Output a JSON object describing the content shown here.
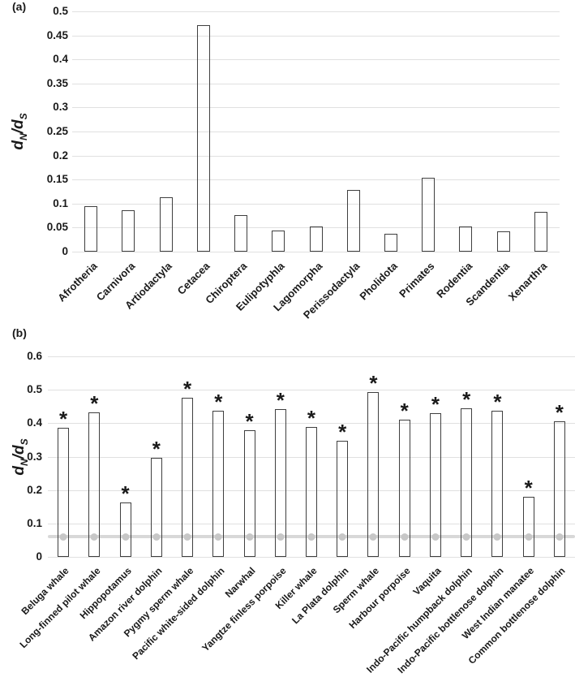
{
  "colors": {
    "background": "#ffffff",
    "text": "#1a1a1a",
    "gridline": "#e0e0e0",
    "bar_outline": "#3f3f3f",
    "reference_line": "#d8d8d8",
    "reference_dot": "#c7c7c7"
  },
  "chart_data": [
    {
      "type": "bar",
      "panel_label": "(a)",
      "y_axis_title": "dN/dS",
      "y_axis_title_parts": {
        "base1": "d",
        "sub1": "N",
        "base2": "/d",
        "sub2": "S"
      },
      "categories": [
        "Afrotheria",
        "Carnivora",
        "Artiodactyla",
        "Cetacea",
        "Chiroptera",
        "Eulipotyphla",
        "Lagomorpha",
        "Perissodactyla",
        "Pholidota",
        "Primates",
        "Rodentia",
        "Scandentia",
        "Xenarthra"
      ],
      "values": [
        0.095,
        0.086,
        0.113,
        0.472,
        0.076,
        0.044,
        0.052,
        0.128,
        0.037,
        0.153,
        0.052,
        0.042,
        0.082
      ],
      "ylim": [
        0,
        0.5
      ],
      "yticks": [
        0,
        0.05,
        0.1,
        0.15,
        0.2,
        0.25,
        0.3,
        0.35,
        0.4,
        0.45,
        0.5
      ],
      "ytick_labels": [
        "0",
        "0.05",
        "0.1",
        "0.15",
        "0.2",
        "0.25",
        "0.3",
        "0.35",
        "0.4",
        "0.45",
        "0.5"
      ],
      "grid": true,
      "legend": "none",
      "bar_style": "white fill, dark outline",
      "x_label_rotation_deg": 45
    },
    {
      "type": "bar",
      "panel_label": "(b)",
      "y_axis_title": "dN/dS",
      "y_axis_title_parts": {
        "base1": "d",
        "sub1": "N",
        "base2": "/d",
        "sub2": "S"
      },
      "categories": [
        "Beluga whale",
        "Long-finned pilot whale",
        "Hippopotamus",
        "Amazon river dolphin",
        "Pygmy sperm whale",
        "Pacific white-sided dolphin",
        "Narwhal",
        "Yangtze finless porpoise",
        "Killer whale",
        "La Plata dolphin",
        "Sperm whale",
        "Harbour porpoise",
        "Vaquita",
        "Indo-Pacific humpback dolphin",
        "Indo-Pacific bottlenose dolphin",
        "West Indian manatee",
        "Common bottlenose dolphin"
      ],
      "values": [
        0.387,
        0.432,
        0.163,
        0.296,
        0.477,
        0.438,
        0.379,
        0.442,
        0.388,
        0.347,
        0.492,
        0.41,
        0.431,
        0.444,
        0.437,
        0.18,
        0.405
      ],
      "significance_marker": "*",
      "significance": [
        true,
        true,
        true,
        true,
        true,
        true,
        true,
        true,
        true,
        true,
        true,
        true,
        true,
        true,
        true,
        true,
        true
      ],
      "reference_line": {
        "value": 0.06,
        "style": "gray line with round markers at each category"
      },
      "ylim": [
        0,
        0.6
      ],
      "yticks": [
        0,
        0.1,
        0.2,
        0.3,
        0.4,
        0.5,
        0.6
      ],
      "ytick_labels": [
        "0",
        "0.1",
        "0.2",
        "0.3",
        "0.4",
        "0.5",
        "0.6"
      ],
      "grid": true,
      "legend": "none",
      "bar_style": "white fill, dark outline",
      "x_label_rotation_deg": 45
    }
  ]
}
